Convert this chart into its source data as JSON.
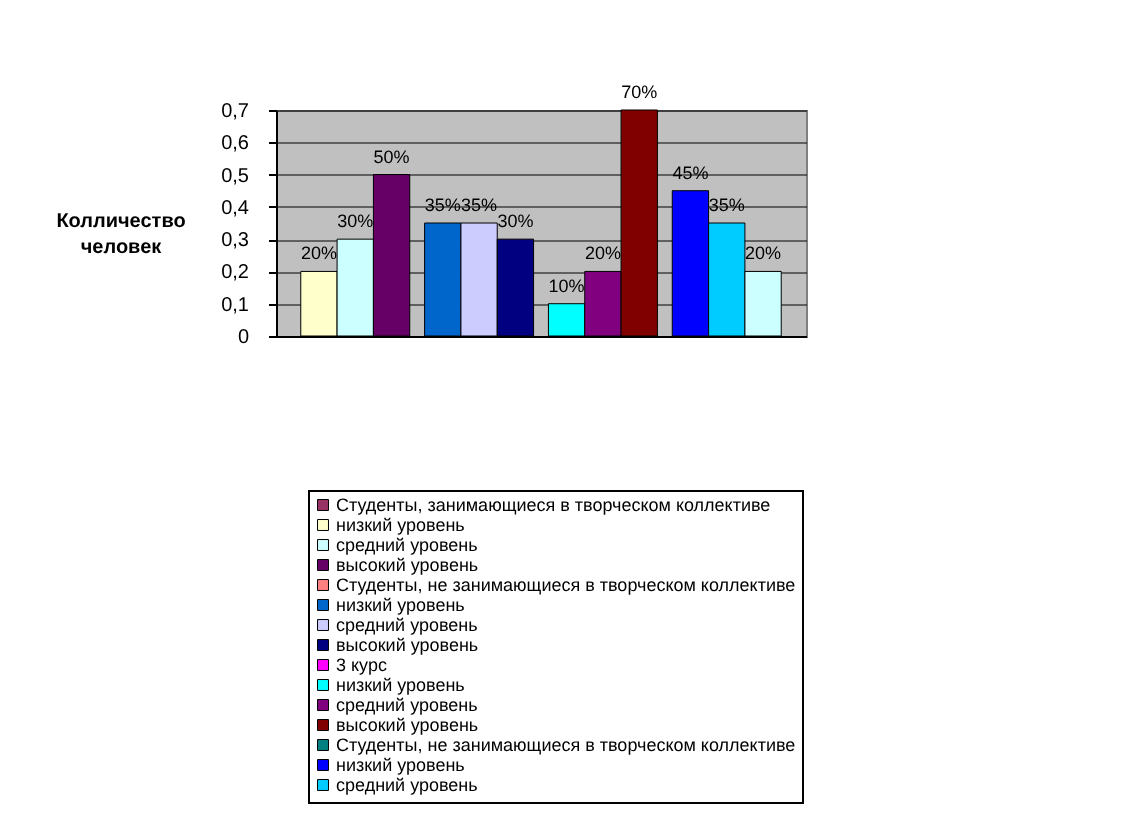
{
  "chart_data": {
    "type": "bar",
    "ylabel": "Колличество человек",
    "categories": [
      null,
      null,
      null,
      null
    ],
    "ylim": [
      0,
      0.7
    ],
    "yticks": [
      0,
      {
        "value": 0.1,
        "label": "0,1"
      },
      {
        "value": 0.2,
        "label": "0,2"
      },
      {
        "value": 0.3,
        "label": "0,3"
      },
      {
        "value": 0.4,
        "label": "0,4"
      },
      {
        "value": 0.5,
        "label": "0,5"
      },
      {
        "value": 0.6,
        "label": "0,6"
      },
      {
        "value": 0.7,
        "label": "0,7"
      }
    ],
    "grid": "y",
    "legend": "bottom",
    "series": [
      {
        "name": "Студенты, занимающиеся в творческом коллективе",
        "color": "#993366",
        "values": [
          null,
          null,
          null,
          null
        ]
      },
      {
        "name": "низкий уровень",
        "color": "#FFFFCC",
        "values": [
          0.2,
          null,
          null,
          null
        ],
        "value_labels": [
          "20%",
          null,
          null,
          null
        ]
      },
      {
        "name": "средний уровень",
        "color": "#CCFFFF",
        "values": [
          0.3,
          null,
          null,
          null
        ],
        "value_labels": [
          "30%",
          null,
          null,
          null
        ]
      },
      {
        "name": "высокий уровень",
        "color": "#660066",
        "values": [
          0.5,
          null,
          null,
          null
        ],
        "value_labels": [
          "50%",
          null,
          null,
          null
        ]
      },
      {
        "name": "Студенты, не занимающиеся в творческом коллективе",
        "color": "#FF8080",
        "values": [
          null,
          null,
          null,
          null
        ]
      },
      {
        "name": "низкий уровень",
        "color": "#0066CC",
        "values": [
          null,
          0.35,
          null,
          null
        ],
        "value_labels": [
          null,
          "35%",
          null,
          null
        ]
      },
      {
        "name": "средний уровень",
        "color": "#CCCCFF",
        "values": [
          null,
          0.35,
          null,
          null
        ],
        "value_labels": [
          null,
          "35%",
          null,
          null
        ]
      },
      {
        "name": "высокий уровень",
        "color": "#000080",
        "values": [
          null,
          0.3,
          null,
          null
        ],
        "value_labels": [
          null,
          "30%",
          null,
          null
        ]
      },
      {
        "name": "3 курс",
        "color": "#FF00FF",
        "values": [
          null,
          null,
          null,
          null
        ]
      },
      {
        "name": "низкий уровень",
        "color": "#00FFFF",
        "values": [
          null,
          null,
          0.1,
          null
        ],
        "value_labels": [
          null,
          null,
          "10%",
          null
        ]
      },
      {
        "name": "средний уровень",
        "color": "#800080",
        "values": [
          null,
          null,
          0.2,
          null
        ],
        "value_labels": [
          null,
          null,
          "20%",
          null
        ]
      },
      {
        "name": "высокий уровень",
        "color": "#800000",
        "values": [
          null,
          null,
          0.7,
          null
        ],
        "value_labels": [
          null,
          null,
          "70%",
          null
        ]
      },
      {
        "name": "Студенты, не занимающиеся в творческом коллективе",
        "color": "#008080",
        "values": [
          null,
          null,
          null,
          null
        ]
      },
      {
        "name": "низкий уровень",
        "color": "#0000FF",
        "values": [
          null,
          null,
          null,
          0.45
        ],
        "value_labels": [
          null,
          null,
          null,
          "45%"
        ]
      },
      {
        "name": "средний уровень",
        "color": "#00CCFF",
        "values": [
          null,
          null,
          null,
          0.35
        ],
        "value_labels": [
          null,
          null,
          null,
          "35%"
        ]
      },
      {
        "color": "#CCFFFF",
        "values": [
          null,
          null,
          null,
          0.2
        ],
        "value_labels": [
          null,
          null,
          null,
          "20%"
        ]
      }
    ]
  }
}
